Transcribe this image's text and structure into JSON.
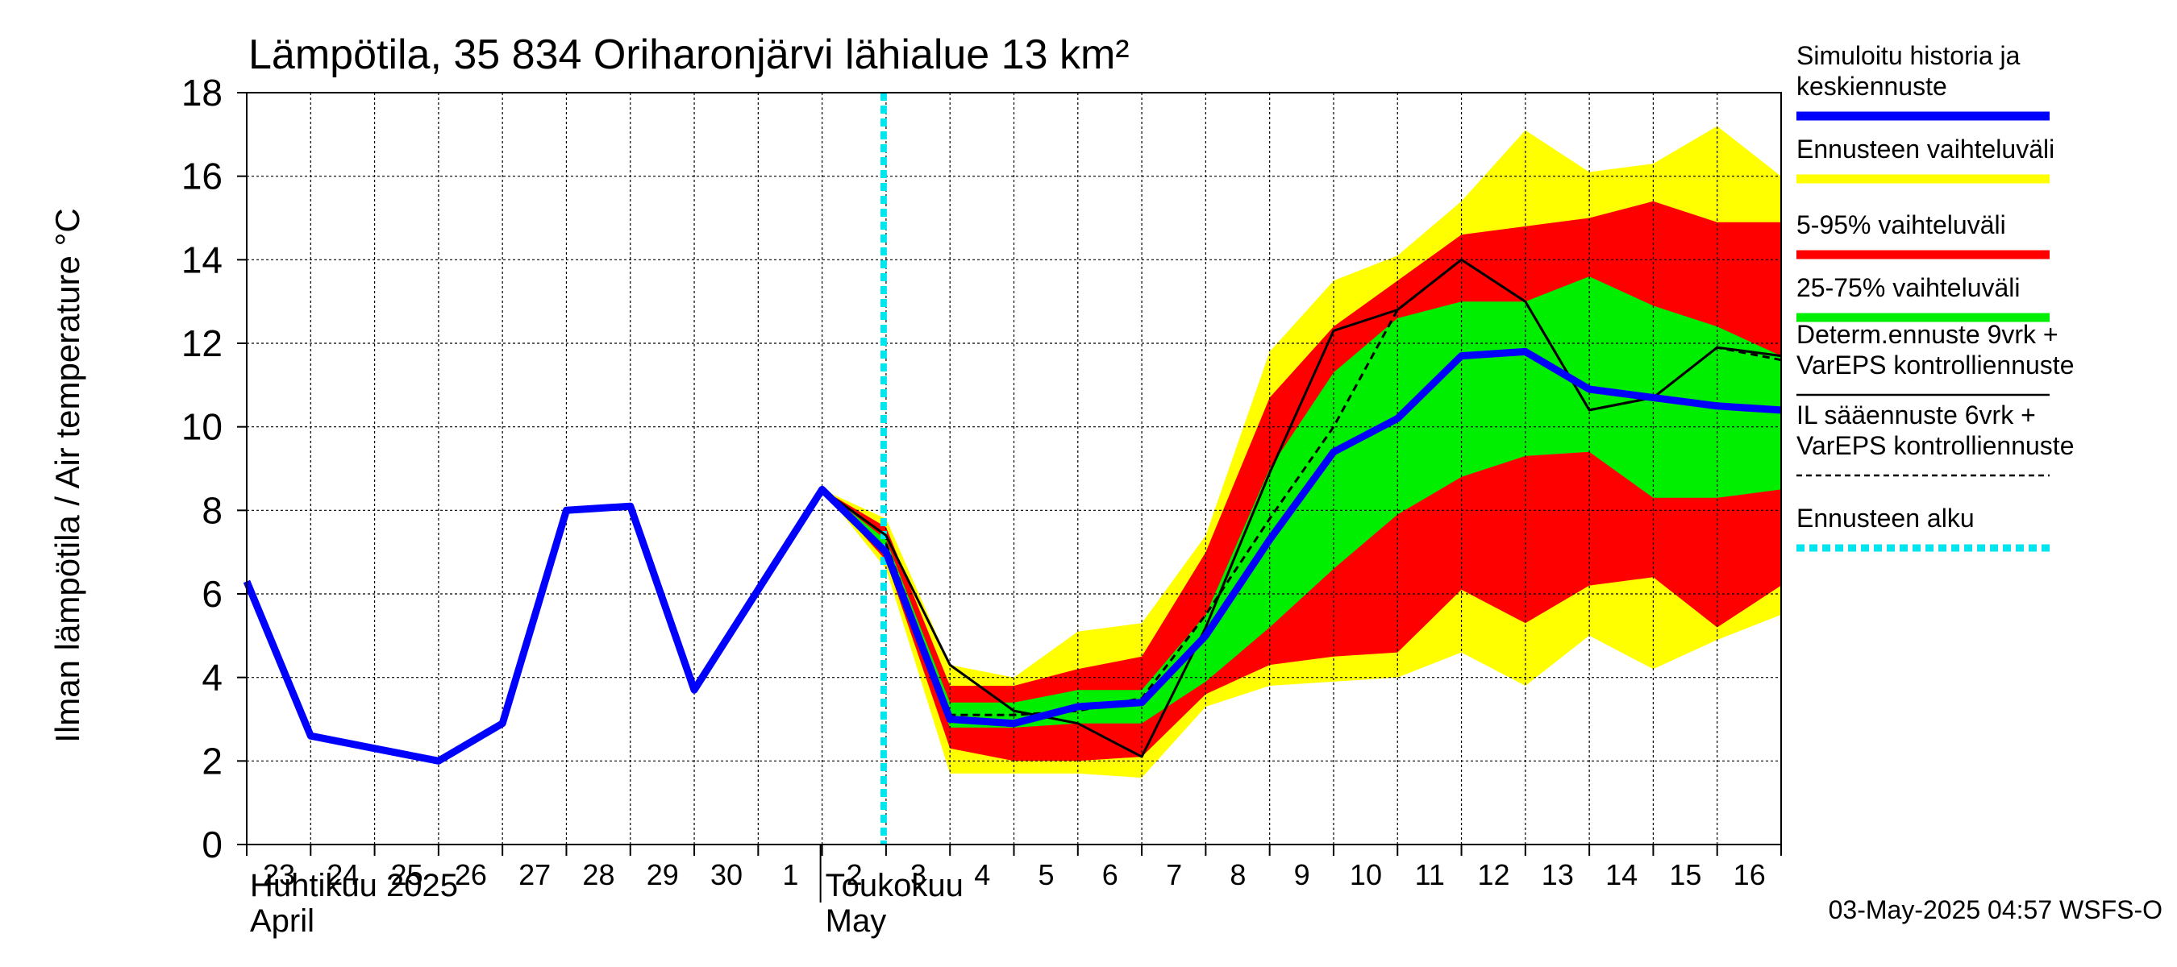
{
  "chart_data": {
    "type": "area",
    "title": "Lämpötila, 35 834 Oriharonjärvi lähialue 13 km²",
    "ylabel": "Ilman lämpötila / Air temperature   °C",
    "ylim": [
      0,
      18
    ],
    "yticks": [
      0,
      2,
      4,
      6,
      8,
      10,
      12,
      14,
      16,
      18
    ],
    "x_range": [
      0,
      24
    ],
    "day_labels": [
      "23",
      "24",
      "25",
      "26",
      "27",
      "28",
      "29",
      "30",
      "1",
      "2",
      "3",
      "4",
      "5",
      "6",
      "7",
      "8",
      "9",
      "10",
      "11",
      "12",
      "13",
      "14",
      "15",
      "16"
    ],
    "month_labels": [
      {
        "line1": "Huhtikuu  2025",
        "line2": "April",
        "day_index": 0
      },
      {
        "line1": "Toukokuu",
        "line2": "May",
        "day_index": 9
      }
    ],
    "forecast_start": 10,
    "footer": "03-May-2025 04:57 WSFS-O",
    "legend": [
      {
        "label": "Simuloitu historia ja\nkeskiennuste",
        "color": "#0000ff",
        "style": "thick"
      },
      {
        "label": "Ennusteen vaihteluväli",
        "color": "#ffff00",
        "style": "thick"
      },
      {
        "label": "5-95% vaihteluväli",
        "color": "#ff0000",
        "style": "thick"
      },
      {
        "label": "25-75% vaihteluväli",
        "color": "#00ee00",
        "style": "thick"
      },
      {
        "label": "Determ.ennuste 9vrk +\nVarEPS kontrolliennuste",
        "color": "#000000",
        "style": "thin"
      },
      {
        "label": "IL sääennuste 6vrk  +\n  VarEPS kontrolliennuste",
        "color": "#000000",
        "style": "dashed"
      },
      {
        "label": "Ennusteen alku",
        "color": "#00e5ee",
        "style": "dotted"
      }
    ],
    "bands": {
      "x": [
        9,
        10,
        11,
        12,
        13,
        14,
        15,
        16,
        17,
        18,
        19,
        20,
        21,
        22,
        23,
        24
      ],
      "total_min": [
        8.5,
        6.6,
        1.7,
        1.7,
        1.7,
        1.6,
        3.3,
        3.8,
        3.9,
        4.0,
        4.6,
        3.8,
        5.0,
        4.2,
        4.9,
        5.5
      ],
      "total_max": [
        8.5,
        7.8,
        4.3,
        4.0,
        5.1,
        5.3,
        7.4,
        11.8,
        13.5,
        14.1,
        15.4,
        17.1,
        16.1,
        16.3,
        17.2,
        16.0
      ],
      "p5": [
        8.5,
        6.8,
        2.3,
        2.0,
        2.0,
        2.1,
        3.6,
        4.3,
        4.5,
        4.6,
        6.1,
        5.3,
        6.2,
        6.4,
        5.2,
        6.2
      ],
      "p95": [
        8.5,
        7.6,
        3.8,
        3.8,
        4.2,
        4.5,
        7.0,
        10.7,
        12.4,
        13.5,
        14.6,
        14.8,
        15.0,
        15.4,
        14.9,
        14.9
      ],
      "p25": [
        8.5,
        7.0,
        2.8,
        2.8,
        2.9,
        2.9,
        3.9,
        5.2,
        6.6,
        7.9,
        8.8,
        9.3,
        9.4,
        8.3,
        8.3,
        8.5
      ],
      "p75": [
        8.5,
        7.3,
        3.4,
        3.4,
        3.7,
        3.7,
        5.5,
        9.0,
        11.3,
        12.6,
        13.0,
        13.0,
        13.6,
        12.9,
        12.4,
        11.7
      ]
    },
    "series": [
      {
        "name": "Simuloitu historia ja keskiennuste",
        "color": "#0000ff",
        "x": [
          0,
          1,
          2,
          3,
          4,
          5,
          6,
          7,
          8,
          9,
          10,
          11,
          12,
          13,
          14,
          15,
          16,
          17,
          18,
          19,
          20,
          21,
          22,
          23,
          24
        ],
        "values": [
          6.3,
          2.6,
          2.3,
          2.0,
          2.9,
          8.0,
          8.1,
          3.7,
          6.1,
          8.5,
          7.0,
          3.0,
          2.9,
          3.3,
          3.4,
          5.0,
          7.3,
          9.4,
          10.2,
          11.7,
          11.8,
          10.9,
          10.7,
          10.5,
          10.4
        ]
      },
      {
        "name": "Determ.ennuste 9vrk + VarEPS kontrolliennuste",
        "color": "#000000",
        "x": [
          8,
          9,
          10,
          11,
          12,
          13,
          14,
          15,
          16,
          17,
          18,
          19,
          20,
          21,
          22,
          23,
          24
        ],
        "values": [
          6.1,
          8.5,
          7.4,
          4.3,
          3.2,
          2.9,
          2.1,
          5.2,
          8.9,
          12.3,
          12.8,
          14.0,
          13.0,
          10.4,
          10.7,
          11.9,
          11.7
        ]
      },
      {
        "name": "IL sääennuste 6vrk + VarEPS kontrolliennuste",
        "color": "#000000",
        "x": [
          10,
          11,
          12,
          13,
          14,
          15,
          16,
          17,
          18,
          19,
          20,
          21,
          22,
          23,
          24
        ],
        "values": [
          7.2,
          3.1,
          3.1,
          3.2,
          3.5,
          5.5,
          7.8,
          10.0,
          12.8,
          14.0,
          13.0,
          10.4,
          10.7,
          11.9,
          11.6
        ]
      }
    ]
  }
}
